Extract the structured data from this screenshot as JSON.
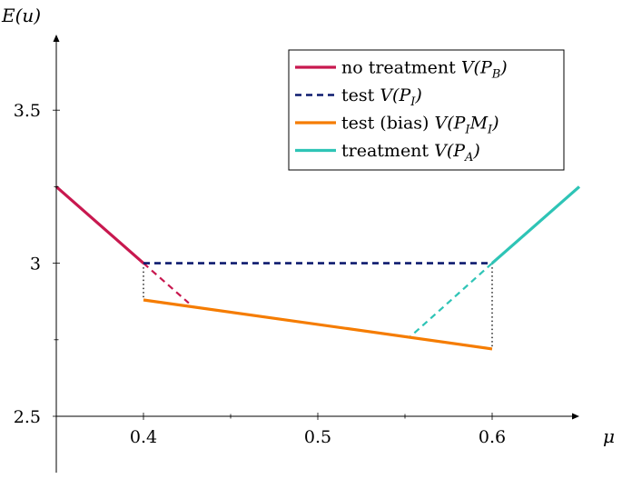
{
  "chart_data": {
    "type": "line",
    "xlabel": "μ",
    "ylabel": "E(u)",
    "xlim": [
      0.35,
      0.65
    ],
    "ylim": [
      2.5,
      3.75
    ],
    "xticks": [
      {
        "value": 0.4,
        "label": "0.4"
      },
      {
        "value": 0.5,
        "label": "0.5"
      },
      {
        "value": 0.6,
        "label": "0.6"
      }
    ],
    "yticks": [
      {
        "value": 2.5,
        "label": "2.5"
      },
      {
        "value": 3.0,
        "label": "3"
      },
      {
        "value": 3.5,
        "label": "3.5"
      }
    ],
    "minor_xticks": [
      0.45,
      0.55
    ],
    "minor_yticks": [
      2.75,
      3.25
    ],
    "legend_position": "top-right",
    "series": [
      {
        "name": "no treatment V(P_B)",
        "name_parts": {
          "plain": "no treatment ",
          "math": "V(P",
          "sub": "B",
          "close": ")"
        },
        "color": "#c8184f",
        "style": "solid",
        "width": 3.2,
        "points": [
          [
            0.35,
            3.25
          ],
          [
            0.4,
            3.0
          ]
        ]
      },
      {
        "name": "test V(P_I)",
        "name_parts": {
          "plain": "test ",
          "math": "V(P",
          "sub": "I",
          "close": ")"
        },
        "color": "#0c1a6e",
        "style": "dashed",
        "width": 2.6,
        "points": [
          [
            0.4,
            3.0
          ],
          [
            0.6,
            3.0
          ]
        ]
      },
      {
        "name": "test (bias) V(P_I M_I)",
        "name_parts": {
          "plain": "test (bias) ",
          "math": "V(P",
          "sub": "I",
          "mid": "M",
          "sub2": "I",
          "close": ")"
        },
        "color": "#f57c00",
        "style": "solid",
        "width": 3.2,
        "points": [
          [
            0.4,
            2.88
          ],
          [
            0.6,
            2.72
          ]
        ]
      },
      {
        "name": "treatment V(P_A)",
        "name_parts": {
          "plain": "treatment ",
          "math": "V(P",
          "sub": "A",
          "close": ")"
        },
        "color": "#2ec4b6",
        "style": "solid",
        "width": 3.2,
        "points": [
          [
            0.6,
            3.0
          ],
          [
            0.65,
            3.25
          ]
        ]
      }
    ],
    "extensions": [
      {
        "color": "#c8184f",
        "style": "dashed",
        "points": [
          [
            0.4,
            3.0
          ],
          [
            0.426,
            2.87
          ]
        ]
      },
      {
        "color": "#2ec4b6",
        "style": "dashed",
        "points": [
          [
            0.6,
            3.0
          ],
          [
            0.553,
            2.76
          ]
        ]
      }
    ],
    "guides": [
      {
        "color": "#000000",
        "style": "dotted",
        "points": [
          [
            0.4,
            3.0
          ],
          [
            0.4,
            2.88
          ]
        ]
      },
      {
        "color": "#000000",
        "style": "dotted",
        "points": [
          [
            0.6,
            3.0
          ],
          [
            0.6,
            2.72
          ]
        ]
      }
    ]
  }
}
